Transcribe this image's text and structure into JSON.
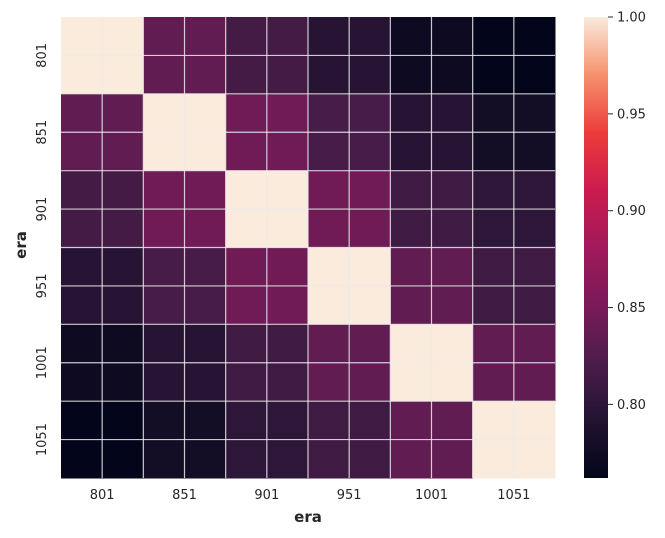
{
  "chart_data": {
    "type": "heatmap",
    "x_categories": [
      "801",
      "851",
      "901",
      "951",
      "1001",
      "1051"
    ],
    "y_categories": [
      "801",
      "851",
      "901",
      "951",
      "1001",
      "1051"
    ],
    "values": [
      [
        1.0,
        0.835,
        0.815,
        0.795,
        0.772,
        0.762
      ],
      [
        0.835,
        1.0,
        0.845,
        0.818,
        0.795,
        0.778
      ],
      [
        0.815,
        0.845,
        1.0,
        0.845,
        0.812,
        0.8
      ],
      [
        0.795,
        0.818,
        0.845,
        1.0,
        0.835,
        0.812
      ],
      [
        0.772,
        0.795,
        0.812,
        0.835,
        1.0,
        0.835
      ],
      [
        0.762,
        0.778,
        0.8,
        0.812,
        0.835,
        1.0
      ]
    ],
    "xlabel": "era",
    "ylabel": "era",
    "colorbar": {
      "range": [
        0.762,
        1.0
      ],
      "ticks": [
        "0.80",
        "0.85",
        "0.90",
        "0.95",
        "1.00"
      ],
      "colormap": "rocket"
    },
    "grid": true
  }
}
